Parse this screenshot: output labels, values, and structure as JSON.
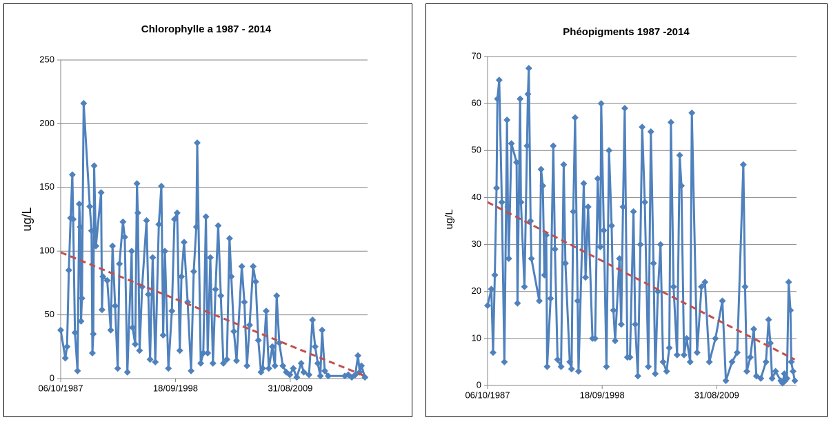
{
  "chart_data": [
    {
      "type": "line",
      "title": "Chlorophylle a 1987 - 2014",
      "y_label": "ug/L",
      "color": "#4f81bd",
      "grid": true,
      "xlim": [
        "06/10/1987",
        "15/01/2017"
      ],
      "xticks": [
        "06/10/1987",
        "18/09/1998",
        "31/08/2009"
      ],
      "ylim": [
        0,
        250
      ],
      "yticks": [
        0,
        50,
        100,
        150,
        200,
        250
      ],
      "x": [
        "06/10/1987",
        "15/03/1988",
        "15/05/1988",
        "15/07/1988",
        "15/09/1988",
        "15/11/1988",
        "15/12/1988",
        "15/02/1989",
        "15/05/1989",
        "15/07/1989",
        "15/08/1989",
        "15/09/1989",
        "15/10/1989",
        "15/12/1989",
        "15/07/1990",
        "15/09/1990",
        "15/10/1990",
        "15/11/1990",
        "15/12/1990",
        "15/02/1991",
        "15/08/1991",
        "15/09/1991",
        "15/10/1991",
        "15/03/1992",
        "15/07/1992",
        "15/09/1992",
        "15/12/1992",
        "15/03/1993",
        "15/05/1993",
        "15/09/1993",
        "15/11/1993",
        "15/02/1994",
        "15/07/1994",
        "15/08/1994",
        "15/11/1994",
        "15/01/1995",
        "15/02/1995",
        "15/04/1995",
        "15/07/1995",
        "15/12/1995",
        "15/02/1996",
        "15/04/1996",
        "15/07/1996",
        "15/10/1996",
        "15/02/1997",
        "15/05/1997",
        "15/07/1997",
        "15/09/1997",
        "15/01/1998",
        "15/05/1998",
        "15/08/1998",
        "15/11/1998",
        "15/02/1999",
        "15/04/1999",
        "15/07/1999",
        "15/11/1999",
        "15/03/2000",
        "15/06/2000",
        "15/09/2000",
        "15/10/2000",
        "15/02/2001",
        "15/05/2001",
        "15/08/2001",
        "15/10/2001",
        "15/01/2002",
        "15/04/2002",
        "15/07/2002",
        "15/10/2002",
        "15/01/2003",
        "15/04/2003",
        "15/08/2003",
        "15/11/2003",
        "15/01/2004",
        "15/04/2004",
        "15/07/2004",
        "15/01/2005",
        "15/04/2005",
        "15/07/2005",
        "15/10/2005",
        "15/02/2006",
        "15/05/2006",
        "15/08/2006",
        "15/11/2006",
        "15/01/2007",
        "15/05/2007",
        "15/08/2007",
        "15/12/2007",
        "15/03/2008",
        "15/05/2008",
        "15/08/2008",
        "15/12/2008",
        "15/04/2009",
        "15/08/2009",
        "15/12/2009",
        "15/04/2010",
        "15/09/2010",
        "15/12/2010",
        "15/06/2011",
        "15/10/2011",
        "15/01/2012",
        "15/04/2012",
        "15/07/2012",
        "15/09/2012",
        "15/12/2012",
        "15/04/2013",
        "15/11/2014",
        "15/03/2015",
        "15/07/2015",
        "15/11/2015",
        "15/02/2016",
        "15/04/2016",
        "15/06/2016",
        "15/10/2016"
      ],
      "values": [
        38,
        16,
        25,
        85,
        126,
        160,
        125,
        36,
        6,
        137,
        119,
        45,
        63,
        216,
        135,
        116,
        20,
        35,
        167,
        104,
        146,
        54,
        80,
        77,
        38,
        104,
        57,
        8,
        90,
        123,
        111,
        5,
        100,
        40,
        27,
        153,
        130,
        22,
        72,
        124,
        66,
        15,
        95,
        13,
        121,
        151,
        34,
        100,
        8,
        53,
        125,
        130,
        22,
        80,
        107,
        60,
        6,
        84,
        119,
        185,
        12,
        20,
        127,
        20,
        95,
        12,
        70,
        120,
        65,
        12,
        15,
        110,
        80,
        37,
        14,
        88,
        60,
        10,
        42,
        88,
        76,
        30,
        5,
        8,
        53,
        8,
        25,
        10,
        65,
        28,
        10,
        5,
        3,
        8,
        1,
        12,
        5,
        3,
        46,
        25,
        12,
        2,
        38,
        6,
        2,
        2,
        3,
        1,
        3,
        18,
        5,
        10,
        1
      ],
      "trendline": {
        "color": "#c0504d",
        "x": [
          "06/10/1987",
          "15/10/2016"
        ],
        "values": [
          99,
          2
        ]
      }
    },
    {
      "type": "line",
      "title": "Phéopigments 1987 -2014",
      "y_label": "ug/L",
      "color": "#4f81bd",
      "grid": true,
      "xlim": [
        "06/10/1987",
        "15/04/2017"
      ],
      "xticks": [
        "06/10/1987",
        "18/09/1998",
        "31/08/2009"
      ],
      "ylim": [
        0,
        70
      ],
      "yticks": [
        0,
        10,
        20,
        30,
        40,
        50,
        60,
        70
      ],
      "x": [
        "06/10/1987",
        "15/02/1988",
        "15/04/1988",
        "15/06/1988",
        "15/08/1988",
        "15/09/1988",
        "15/11/1988",
        "15/02/1989",
        "15/05/1989",
        "15/08/1989",
        "15/09/1989",
        "15/10/1989",
        "15/01/1990",
        "15/07/1990",
        "15/08/1990",
        "15/11/1990",
        "15/12/1990",
        "15/04/1991",
        "15/07/1991",
        "15/08/1991",
        "15/09/1991",
        "15/11/1991",
        "15/12/1991",
        "15/09/1992",
        "15/11/1992",
        "15/01/1993",
        "15/03/1993",
        "15/05/1993",
        "15/06/1993",
        "15/10/1993",
        "15/01/1994",
        "15/03/1994",
        "15/06/1994",
        "15/10/1994",
        "15/01/1995",
        "15/03/1995",
        "15/08/1995",
        "15/10/1995",
        "15/12/1995",
        "15/02/1996",
        "15/05/1996",
        "15/06/1996",
        "15/12/1996",
        "15/02/1997",
        "15/05/1997",
        "15/10/1997",
        "15/01/1998",
        "15/04/1998",
        "15/07/1998",
        "15/08/1998",
        "15/11/1998",
        "15/02/1999",
        "15/05/1999",
        "15/08/1999",
        "15/10/1999",
        "15/12/1999",
        "15/05/2000",
        "15/07/2000",
        "15/09/2000",
        "15/11/2000",
        "15/02/2001",
        "15/05/2001",
        "15/09/2001",
        "15/11/2001",
        "15/02/2002",
        "15/05/2002",
        "15/07/2002",
        "15/10/2002",
        "15/02/2003",
        "15/05/2003",
        "15/08/2003",
        "15/10/2003",
        "15/01/2004",
        "15/04/2004",
        "15/07/2004",
        "15/11/2004",
        "15/02/2005",
        "15/04/2005",
        "15/07/2005",
        "15/11/2005",
        "15/02/2006",
        "15/04/2006",
        "15/07/2006",
        "15/10/2006",
        "15/02/2007",
        "15/04/2007",
        "15/10/2007",
        "15/03/2008",
        "15/07/2008",
        "15/12/2008",
        "15/07/2009",
        "15/03/2010",
        "15/07/2010",
        "15/02/2011",
        "15/08/2011",
        "15/03/2012",
        "15/05/2012",
        "15/07/2012",
        "15/11/2012",
        "15/03/2013",
        "15/06/2013",
        "15/11/2013",
        "15/05/2014",
        "15/08/2014",
        "15/10/2014",
        "15/12/2014",
        "15/04/2015",
        "15/10/2015",
        "15/12/2015",
        "15/02/2016",
        "15/03/2016",
        "15/05/2016",
        "15/07/2016",
        "15/09/2016",
        "15/10/2016",
        "15/12/2016",
        "15/02/2017"
      ],
      "values": [
        17,
        20.5,
        7,
        23.5,
        42,
        61,
        65,
        39,
        5,
        56.5,
        38,
        27,
        51.5,
        47.5,
        17.5,
        61,
        39,
        21,
        51,
        62,
        67.5,
        35,
        27,
        18,
        46,
        42.5,
        23.5,
        32,
        4,
        18.5,
        51,
        29,
        5.5,
        4,
        47,
        26,
        5,
        3.5,
        37,
        57,
        18,
        3,
        43,
        23,
        38,
        10,
        10,
        44,
        29.5,
        60,
        33,
        4,
        50,
        34,
        16,
        9.5,
        27,
        13,
        38,
        59,
        6,
        6,
        37,
        13,
        2,
        30,
        55,
        39,
        4,
        54,
        26,
        2.5,
        20,
        30,
        5,
        3,
        8,
        56,
        21,
        6.5,
        49,
        42.5,
        6.5,
        10,
        5,
        58,
        7,
        21,
        22,
        5,
        10,
        18,
        1,
        5,
        7,
        47,
        21,
        3,
        6,
        12,
        2,
        1.5,
        5,
        14,
        9,
        1.5,
        3,
        1,
        0.5,
        2.5,
        1,
        1.5,
        22,
        16,
        5,
        3,
        1
      ],
      "trendline": {
        "color": "#c0504d",
        "x": [
          "06/10/1987",
          "15/02/2017"
        ],
        "values": [
          39,
          5.5
        ]
      }
    }
  ]
}
